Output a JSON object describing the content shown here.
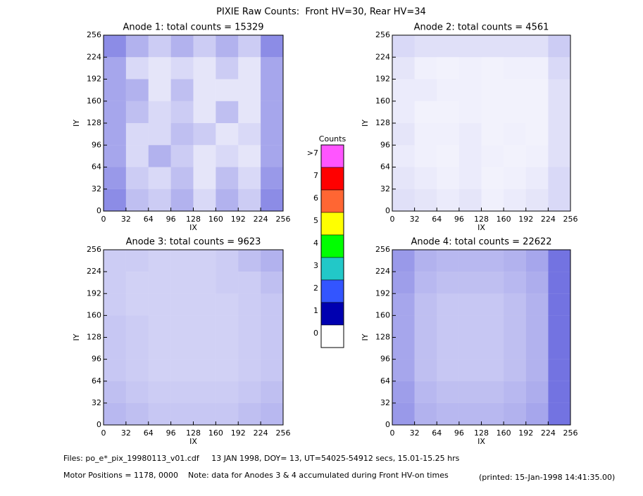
{
  "title": "PIXIE Raw Counts:  Front HV=30, Rear HV=34",
  "chart_data": [
    {
      "type": "heatmap",
      "title": "Anode 1: total counts = 15329",
      "x_label": "IX",
      "y_label": "IY",
      "color": "#0000c8",
      "xbins": [
        0,
        32,
        64,
        96,
        128,
        160,
        192,
        224,
        256
      ],
      "ybins": [
        0,
        32,
        64,
        96,
        128,
        160,
        192,
        224,
        256
      ],
      "xlim": [
        0,
        256
      ],
      "ylim": [
        0,
        256
      ],
      "xticks": [
        0,
        32,
        64,
        96,
        128,
        160,
        192,
        224,
        256
      ],
      "yticks": [
        0,
        32,
        64,
        96,
        128,
        160,
        192,
        224,
        256
      ],
      "z": [
        [
          0.45,
          0.25,
          0.2,
          0.3,
          0.15,
          0.3,
          0.2,
          0.45
        ],
        [
          0.4,
          0.2,
          0.15,
          0.25,
          0.1,
          0.25,
          0.15,
          0.4
        ],
        [
          0.35,
          0.15,
          0.3,
          0.2,
          0.1,
          0.15,
          0.1,
          0.35
        ],
        [
          0.35,
          0.15,
          0.15,
          0.25,
          0.2,
          0.1,
          0.15,
          0.35
        ],
        [
          0.35,
          0.25,
          0.15,
          0.2,
          0.1,
          0.25,
          0.1,
          0.35
        ],
        [
          0.35,
          0.3,
          0.1,
          0.25,
          0.1,
          0.1,
          0.1,
          0.35
        ],
        [
          0.35,
          0.15,
          0.1,
          0.15,
          0.1,
          0.2,
          0.1,
          0.35
        ],
        [
          0.45,
          0.3,
          0.2,
          0.3,
          0.2,
          0.3,
          0.2,
          0.45
        ]
      ]
    },
    {
      "type": "heatmap",
      "title": "Anode 2: total counts = 4561",
      "x_label": "IX",
      "y_label": "IY",
      "color": "#0000c8",
      "xbins": [
        0,
        32,
        64,
        96,
        128,
        160,
        192,
        224,
        256
      ],
      "ybins": [
        0,
        32,
        64,
        96,
        128,
        160,
        192,
        224,
        256
      ],
      "xlim": [
        0,
        256
      ],
      "ylim": [
        0,
        256
      ],
      "xticks": [
        0,
        32,
        64,
        96,
        128,
        160,
        192,
        224,
        256
      ],
      "yticks": [
        0,
        32,
        64,
        96,
        128,
        160,
        192,
        224,
        256
      ],
      "z": [
        [
          0.12,
          0.1,
          0.08,
          0.1,
          0.06,
          0.08,
          0.1,
          0.15
        ],
        [
          0.1,
          0.08,
          0.06,
          0.08,
          0.05,
          0.06,
          0.08,
          0.15
        ],
        [
          0.08,
          0.06,
          0.05,
          0.08,
          0.06,
          0.05,
          0.06,
          0.12
        ],
        [
          0.1,
          0.06,
          0.06,
          0.08,
          0.05,
          0.06,
          0.05,
          0.12
        ],
        [
          0.08,
          0.05,
          0.05,
          0.06,
          0.05,
          0.05,
          0.05,
          0.12
        ],
        [
          0.08,
          0.08,
          0.06,
          0.06,
          0.05,
          0.05,
          0.05,
          0.12
        ],
        [
          0.1,
          0.06,
          0.05,
          0.06,
          0.05,
          0.06,
          0.06,
          0.15
        ],
        [
          0.15,
          0.12,
          0.12,
          0.12,
          0.12,
          0.12,
          0.12,
          0.2
        ]
      ]
    },
    {
      "type": "heatmap",
      "title": "Anode 3: total counts = 9623",
      "x_label": "IX",
      "y_label": "IY",
      "color": "#0000c8",
      "xbins": [
        0,
        32,
        64,
        96,
        128,
        160,
        192,
        224,
        256
      ],
      "ybins": [
        0,
        32,
        64,
        96,
        128,
        160,
        192,
        224,
        256
      ],
      "xlim": [
        0,
        256
      ],
      "ylim": [
        0,
        256
      ],
      "xticks": [
        0,
        32,
        64,
        96,
        128,
        160,
        192,
        224,
        256
      ],
      "yticks": [
        0,
        32,
        64,
        96,
        128,
        160,
        192,
        224,
        256
      ],
      "z": [
        [
          0.28,
          0.25,
          0.22,
          0.22,
          0.22,
          0.22,
          0.25,
          0.28
        ],
        [
          0.25,
          0.22,
          0.2,
          0.2,
          0.2,
          0.2,
          0.22,
          0.25
        ],
        [
          0.22,
          0.2,
          0.18,
          0.18,
          0.18,
          0.18,
          0.2,
          0.22
        ],
        [
          0.22,
          0.2,
          0.18,
          0.18,
          0.18,
          0.18,
          0.2,
          0.22
        ],
        [
          0.22,
          0.2,
          0.18,
          0.18,
          0.18,
          0.18,
          0.2,
          0.22
        ],
        [
          0.2,
          0.18,
          0.18,
          0.18,
          0.18,
          0.18,
          0.2,
          0.22
        ],
        [
          0.2,
          0.18,
          0.18,
          0.18,
          0.18,
          0.2,
          0.2,
          0.25
        ],
        [
          0.2,
          0.2,
          0.18,
          0.18,
          0.18,
          0.2,
          0.25,
          0.3
        ]
      ]
    },
    {
      "type": "heatmap",
      "title": "Anode 4: total counts = 22622",
      "x_label": "IX",
      "y_label": "IY",
      "color": "#0000c8",
      "xbins": [
        0,
        32,
        64,
        96,
        128,
        160,
        192,
        224,
        256
      ],
      "ybins": [
        0,
        32,
        64,
        96,
        128,
        160,
        192,
        224,
        256
      ],
      "xlim": [
        0,
        256
      ],
      "ylim": [
        0,
        256
      ],
      "xticks": [
        0,
        32,
        64,
        96,
        128,
        160,
        192,
        224,
        256
      ],
      "yticks": [
        0,
        32,
        64,
        96,
        128,
        160,
        192,
        224,
        256
      ],
      "z": [
        [
          0.4,
          0.3,
          0.28,
          0.28,
          0.28,
          0.3,
          0.35,
          0.55
        ],
        [
          0.38,
          0.28,
          0.25,
          0.25,
          0.25,
          0.28,
          0.32,
          0.55
        ],
        [
          0.35,
          0.25,
          0.22,
          0.22,
          0.22,
          0.25,
          0.3,
          0.55
        ],
        [
          0.35,
          0.25,
          0.22,
          0.22,
          0.22,
          0.25,
          0.3,
          0.55
        ],
        [
          0.35,
          0.25,
          0.22,
          0.22,
          0.22,
          0.25,
          0.3,
          0.55
        ],
        [
          0.35,
          0.25,
          0.22,
          0.22,
          0.22,
          0.25,
          0.3,
          0.55
        ],
        [
          0.38,
          0.28,
          0.25,
          0.25,
          0.25,
          0.28,
          0.32,
          0.55
        ],
        [
          0.4,
          0.3,
          0.28,
          0.28,
          0.28,
          0.3,
          0.35,
          0.55
        ]
      ]
    }
  ],
  "colorbar": {
    "title": "Counts",
    "labels": [
      ">7",
      "7",
      "6",
      "5",
      "4",
      "3",
      "2",
      "1",
      "0"
    ],
    "colors": [
      "#ff55ff",
      "#ff0000",
      "#ff6633",
      "#ffff00",
      "#00ff00",
      "#22c8c8",
      "#3355ff",
      "#0000b0",
      "#ffffff"
    ]
  },
  "footer": {
    "files": "Files: po_e*_pix_19980113_v01.cdf     13 JAN 1998, DOY= 13, UT=54025-54912 secs, 15.01-15.25 hrs",
    "motor": "Motor Positions = 1178, 0000    Note: data for Anodes 3 & 4 accumulated during Front HV-on times",
    "printed": "(printed: 15-Jan-1998 14:41:35.00)"
  }
}
